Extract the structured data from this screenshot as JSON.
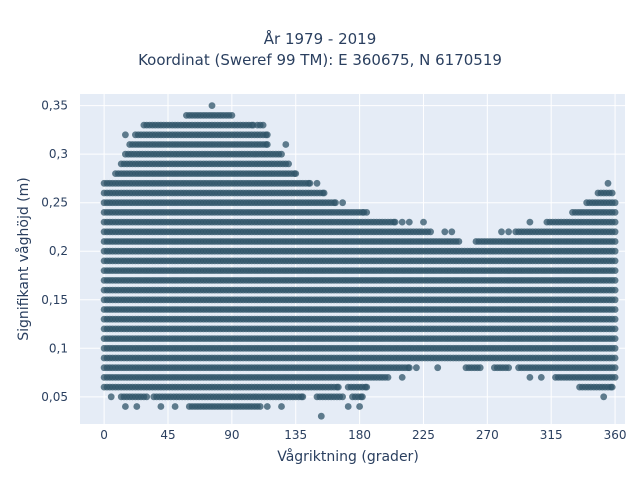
{
  "chart_data": {
    "type": "scatter",
    "title_lines": [
      "År 1979 - 2019",
      "Koordinat (Sweref 99 TM): E 360675, N 6170519"
    ],
    "xlabel": "Vågriktning (grader)",
    "ylabel": "Signifikant våghöjd (m)",
    "xlim": [
      -17,
      367
    ],
    "ylim": [
      0.022,
      0.362
    ],
    "x_ticks": [
      0,
      45,
      90,
      135,
      180,
      225,
      270,
      315,
      360
    ],
    "x_tick_labels": [
      "0",
      "45",
      "90",
      "135",
      "180",
      "225",
      "270",
      "315",
      "360"
    ],
    "y_ticks": [
      0.05,
      0.1,
      0.15,
      0.2,
      0.25,
      0.3,
      0.35
    ],
    "y_tick_labels": [
      "0,05",
      "0,1",
      "0,15",
      "0,2",
      "0,25",
      "0,3",
      "0,35"
    ],
    "grid": true,
    "plot_background": "#e5ecf6",
    "marker_color": "#2f5468",
    "marker_opacity": 0.75,
    "y_step": 0.01,
    "bands": [
      {
        "y": 0.03,
        "ranges": [
          [
            153,
            153
          ]
        ]
      },
      {
        "y": 0.04,
        "ranges": [
          [
            15,
            15
          ],
          [
            23,
            23
          ],
          [
            40,
            40
          ],
          [
            50,
            50
          ],
          [
            60,
            110
          ],
          [
            115,
            115
          ],
          [
            125,
            125
          ],
          [
            172,
            172
          ],
          [
            180,
            180
          ]
        ]
      },
      {
        "y": 0.05,
        "ranges": [
          [
            5,
            5
          ],
          [
            12,
            30
          ],
          [
            35,
            140
          ],
          [
            150,
            168
          ],
          [
            175,
            182
          ],
          [
            352,
            352
          ]
        ]
      },
      {
        "y": 0.06,
        "ranges": [
          [
            0,
            165
          ],
          [
            172,
            185
          ],
          [
            335,
            358
          ]
        ]
      },
      {
        "y": 0.07,
        "ranges": [
          [
            0,
            200
          ],
          [
            210,
            210
          ],
          [
            300,
            300
          ],
          [
            308,
            308
          ],
          [
            318,
            360
          ]
        ]
      },
      {
        "y": 0.08,
        "ranges": [
          [
            0,
            215
          ],
          [
            220,
            220
          ],
          [
            235,
            235
          ],
          [
            255,
            265
          ],
          [
            275,
            285
          ],
          [
            292,
            360
          ]
        ]
      },
      {
        "y": 0.09,
        "ranges": [
          [
            0,
            360
          ]
        ]
      },
      {
        "y": 0.1,
        "ranges": [
          [
            0,
            360
          ]
        ]
      },
      {
        "y": 0.11,
        "ranges": [
          [
            0,
            360
          ]
        ]
      },
      {
        "y": 0.12,
        "ranges": [
          [
            0,
            360
          ]
        ]
      },
      {
        "y": 0.13,
        "ranges": [
          [
            0,
            360
          ]
        ]
      },
      {
        "y": 0.14,
        "ranges": [
          [
            0,
            360
          ]
        ]
      },
      {
        "y": 0.15,
        "ranges": [
          [
            0,
            360
          ]
        ]
      },
      {
        "y": 0.16,
        "ranges": [
          [
            0,
            360
          ]
        ]
      },
      {
        "y": 0.17,
        "ranges": [
          [
            0,
            360
          ]
        ]
      },
      {
        "y": 0.18,
        "ranges": [
          [
            0,
            360
          ]
        ]
      },
      {
        "y": 0.19,
        "ranges": [
          [
            0,
            360
          ]
        ]
      },
      {
        "y": 0.2,
        "ranges": [
          [
            0,
            360
          ]
        ]
      },
      {
        "y": 0.21,
        "ranges": [
          [
            0,
            250
          ],
          [
            262,
            360
          ]
        ]
      },
      {
        "y": 0.22,
        "ranges": [
          [
            0,
            230
          ],
          [
            240,
            240
          ],
          [
            245,
            245
          ],
          [
            280,
            280
          ],
          [
            285,
            285
          ],
          [
            290,
            360
          ]
        ]
      },
      {
        "y": 0.23,
        "ranges": [
          [
            0,
            205
          ],
          [
            210,
            210
          ],
          [
            215,
            215
          ],
          [
            225,
            225
          ],
          [
            300,
            300
          ],
          [
            312,
            360
          ]
        ]
      },
      {
        "y": 0.24,
        "ranges": [
          [
            0,
            183
          ],
          [
            185,
            185
          ],
          [
            330,
            360
          ]
        ]
      },
      {
        "y": 0.25,
        "ranges": [
          [
            0,
            163
          ],
          [
            168,
            168
          ],
          [
            340,
            360
          ]
        ]
      },
      {
        "y": 0.26,
        "ranges": [
          [
            0,
            155
          ],
          [
            348,
            358
          ]
        ]
      },
      {
        "y": 0.27,
        "ranges": [
          [
            0,
            145
          ],
          [
            150,
            150
          ],
          [
            355,
            355
          ]
        ]
      },
      {
        "y": 0.28,
        "ranges": [
          [
            8,
            135
          ]
        ]
      },
      {
        "y": 0.29,
        "ranges": [
          [
            12,
            130
          ]
        ]
      },
      {
        "y": 0.3,
        "ranges": [
          [
            15,
            125
          ]
        ]
      },
      {
        "y": 0.31,
        "ranges": [
          [
            18,
            115
          ],
          [
            128,
            128
          ]
        ]
      },
      {
        "y": 0.32,
        "ranges": [
          [
            15,
            15
          ],
          [
            22,
            115
          ]
        ]
      },
      {
        "y": 0.33,
        "ranges": [
          [
            28,
            105
          ],
          [
            108,
            112
          ]
        ]
      },
      {
        "y": 0.34,
        "ranges": [
          [
            58,
            90
          ]
        ]
      },
      {
        "y": 0.35,
        "ranges": [
          [
            76,
            76
          ]
        ]
      }
    ]
  }
}
